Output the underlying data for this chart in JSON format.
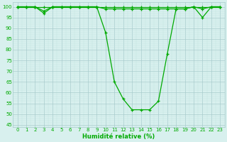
{
  "x": [
    0,
    1,
    2,
    3,
    4,
    5,
    6,
    7,
    8,
    9,
    10,
    11,
    12,
    13,
    14,
    15,
    16,
    17,
    18,
    19,
    20,
    21,
    22,
    23
  ],
  "line1": [
    100,
    100,
    100,
    100,
    100,
    100,
    100,
    100,
    100,
    100,
    100,
    100,
    100,
    100,
    100,
    100,
    100,
    100,
    100,
    100,
    100,
    100,
    100,
    100
  ],
  "line2": [
    100,
    100,
    100,
    98,
    100,
    100,
    100,
    100,
    100,
    100,
    99,
    99,
    99,
    99,
    99,
    99,
    99,
    99,
    99,
    99,
    100,
    99,
    100,
    100
  ],
  "line3": [
    100,
    100,
    100,
    97,
    100,
    100,
    100,
    100,
    100,
    100,
    88,
    65,
    57,
    52,
    52,
    52,
    56,
    78,
    99,
    99,
    100,
    95,
    100,
    100
  ],
  "bg_color": "#d8f0ee",
  "grid_color_major": "#a8cccc",
  "grid_color_minor": "#c4e4e0",
  "line_color": "#00aa00",
  "marker": "+",
  "xlabel": "Humidité relative (%)",
  "tick_color": "#00aa00",
  "label_color": "#00aa00",
  "ylim": [
    44,
    102
  ],
  "yticks": [
    45,
    50,
    55,
    60,
    65,
    70,
    75,
    80,
    85,
    90,
    95,
    100
  ],
  "xlim": [
    -0.5,
    23.5
  ],
  "figsize": [
    3.2,
    2.0
  ],
  "dpi": 100
}
